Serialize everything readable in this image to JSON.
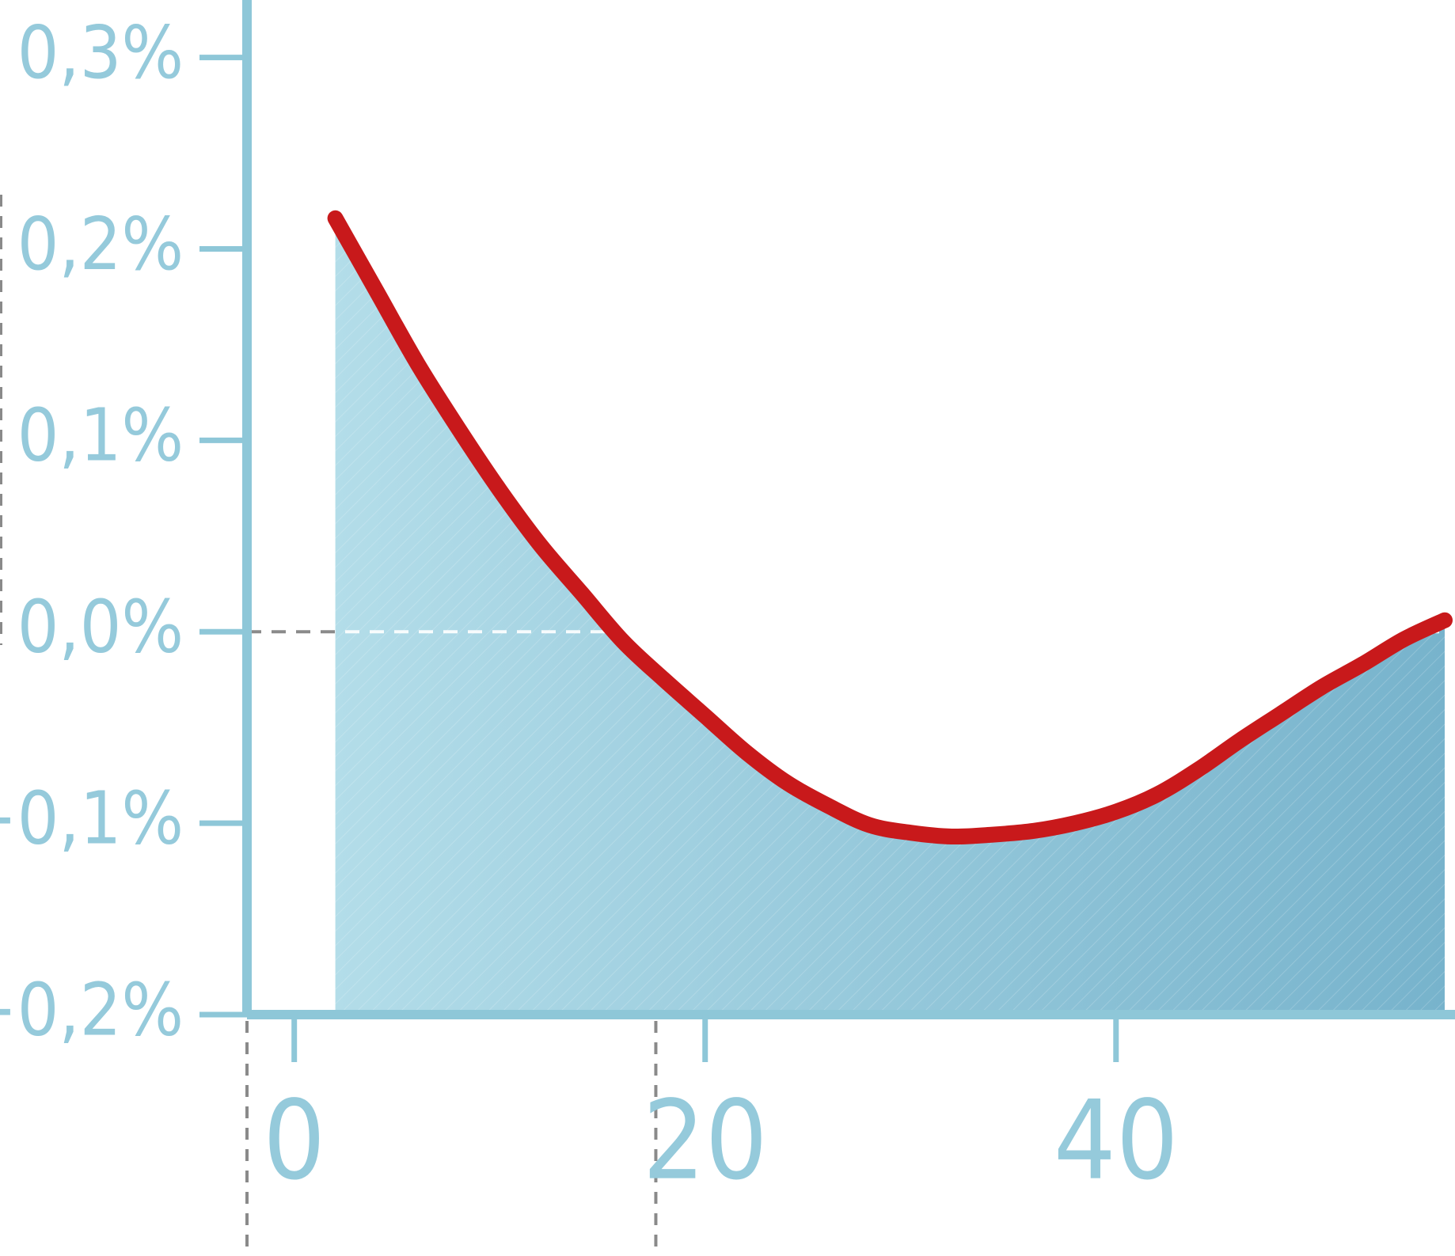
{
  "chart_data": {
    "type": "area",
    "title": "",
    "xlabel": "",
    "ylabel": "",
    "x_ticks": [
      0,
      20,
      40
    ],
    "x_tick_labels": [
      "0",
      "20",
      "40"
    ],
    "y_ticks": [
      0.3,
      0.2,
      0.1,
      0.0,
      -0.1,
      -0.2
    ],
    "y_tick_labels": [
      "0,3%",
      "0,2%",
      "0,1%",
      "0,0%",
      "−0,1%",
      "−0,2%"
    ],
    "xlim": [
      -2.3,
      56.5
    ],
    "ylim": [
      -0.2,
      0.33
    ],
    "reference_lines": {
      "y": 0.0,
      "x": 17.6
    },
    "series": [
      {
        "x": [
          2,
          4,
          6,
          8,
          10,
          12,
          14,
          16,
          18,
          20,
          22,
          24,
          26,
          28,
          30,
          32,
          34,
          36,
          38,
          40,
          42,
          44,
          46,
          48,
          50,
          52,
          54,
          56
        ],
        "y": [
          0.216,
          0.178,
          0.14,
          0.106,
          0.074,
          0.045,
          0.02,
          -0.005,
          -0.025,
          -0.044,
          -0.063,
          -0.079,
          -0.091,
          -0.101,
          -0.105,
          -0.107,
          -0.106,
          -0.104,
          -0.1,
          -0.094,
          -0.085,
          -0.072,
          -0.057,
          -0.043,
          -0.029,
          -0.017,
          -0.004,
          0.006
        ]
      }
    ],
    "colors": {
      "axis": "#8ec7d8",
      "tick_label": "#95cadb",
      "line": "#c8191b",
      "fill_left": "#b3dde9",
      "fill_right": "#77b3cc",
      "dashed_reference": "#8a8a8a"
    },
    "grid": false,
    "legend": "none"
  }
}
